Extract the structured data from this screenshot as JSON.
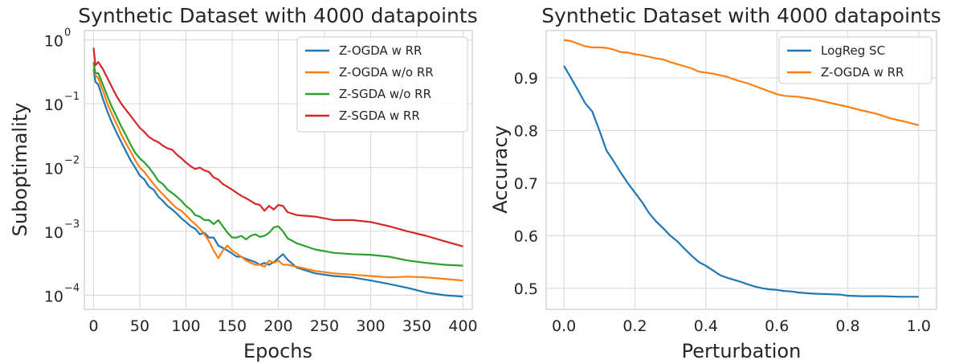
{
  "chart_data": [
    {
      "type": "line",
      "title": "Synthetic Dataset with 4000 datapoints",
      "xlabel": "Epochs",
      "ylabel": "Suboptimality",
      "yscale": "log",
      "xlim": [
        -10,
        410
      ],
      "ylim": [
        6e-05,
        1.4
      ],
      "xticks": [
        0,
        50,
        100,
        150,
        200,
        250,
        300,
        350,
        400
      ],
      "xtick_labels": [
        "0",
        "50",
        "100",
        "150",
        "200",
        "250",
        "300",
        "350",
        "400"
      ],
      "yticks": [
        0.0001,
        0.001,
        0.01,
        0.1,
        1
      ],
      "ytick_labels": [
        {
          "base": "10",
          "exp": "−4"
        },
        {
          "base": "10",
          "exp": "−3"
        },
        {
          "base": "10",
          "exp": "−2"
        },
        {
          "base": "10",
          "exp": "−1"
        },
        {
          "base": "10",
          "exp": "0"
        }
      ],
      "grid": true,
      "legend_position": "top-right",
      "series": [
        {
          "name": "Z-OGDA w RR",
          "color": "#1f77b4",
          "x": [
            0,
            2,
            5,
            10,
            15,
            20,
            25,
            30,
            35,
            40,
            45,
            50,
            55,
            60,
            65,
            70,
            75,
            80,
            85,
            90,
            95,
            100,
            105,
            110,
            115,
            120,
            125,
            130,
            135,
            140,
            145,
            150,
            155,
            160,
            165,
            170,
            175,
            180,
            185,
            190,
            195,
            200,
            205,
            210,
            220,
            240,
            260,
            280,
            300,
            320,
            340,
            360,
            380,
            400
          ],
          "y": [
            0.35,
            0.22,
            0.2,
            0.12,
            0.075,
            0.05,
            0.035,
            0.025,
            0.018,
            0.013,
            0.01,
            0.0075,
            0.0065,
            0.005,
            0.0045,
            0.0035,
            0.003,
            0.0025,
            0.0022,
            0.0019,
            0.0016,
            0.0014,
            0.0012,
            0.0011,
            0.0009,
            0.00095,
            0.0008,
            0.0008,
            0.0006,
            0.00055,
            0.0005,
            0.00045,
            0.0004,
            0.0004,
            0.00037,
            0.00035,
            0.00033,
            0.0003,
            0.00032,
            0.0003,
            0.00033,
            0.00038,
            0.00044,
            0.00036,
            0.00027,
            0.00022,
            0.0002,
            0.00019,
            0.00017,
            0.00015,
            0.00013,
            0.00011,
            0.0001,
            9.5e-05
          ]
        },
        {
          "name": "Z-OGDA w/o RR",
          "color": "#ff7f0e",
          "x": [
            0,
            2,
            5,
            10,
            15,
            20,
            25,
            30,
            35,
            40,
            45,
            50,
            55,
            60,
            65,
            70,
            75,
            80,
            85,
            90,
            95,
            100,
            105,
            110,
            115,
            120,
            125,
            130,
            135,
            140,
            145,
            150,
            155,
            160,
            165,
            170,
            175,
            180,
            185,
            190,
            195,
            200,
            205,
            210,
            220,
            240,
            260,
            280,
            300,
            320,
            340,
            360,
            380,
            400
          ],
          "y": [
            0.4,
            0.28,
            0.25,
            0.16,
            0.1,
            0.068,
            0.048,
            0.033,
            0.024,
            0.018,
            0.013,
            0.01,
            0.0085,
            0.0068,
            0.0055,
            0.0045,
            0.0038,
            0.0032,
            0.0027,
            0.0023,
            0.0021,
            0.0018,
            0.0015,
            0.0013,
            0.0011,
            0.0009,
            0.0007,
            0.0005,
            0.00038,
            0.0005,
            0.0006,
            0.0005,
            0.00045,
            0.0004,
            0.00035,
            0.00032,
            0.0003,
            0.0003,
            0.00028,
            0.00035,
            0.00032,
            0.00035,
            0.0003,
            0.0003,
            0.00028,
            0.00024,
            0.00022,
            0.00021,
            0.0002,
            0.00019,
            0.000195,
            0.00019,
            0.00018,
            0.00017
          ]
        },
        {
          "name": "Z-SGDA w/o RR",
          "color": "#2ca02c",
          "x": [
            0,
            2,
            5,
            10,
            15,
            20,
            25,
            30,
            35,
            40,
            45,
            50,
            55,
            60,
            65,
            70,
            75,
            80,
            85,
            90,
            95,
            100,
            105,
            110,
            115,
            120,
            125,
            130,
            135,
            140,
            145,
            150,
            155,
            160,
            165,
            170,
            175,
            180,
            185,
            190,
            195,
            200,
            205,
            210,
            220,
            240,
            260,
            280,
            300,
            320,
            340,
            360,
            380,
            400
          ],
          "y": [
            0.45,
            0.3,
            0.3,
            0.2,
            0.13,
            0.088,
            0.062,
            0.044,
            0.032,
            0.023,
            0.017,
            0.014,
            0.012,
            0.01,
            0.008,
            0.0062,
            0.0055,
            0.0045,
            0.004,
            0.0035,
            0.003,
            0.0025,
            0.0022,
            0.0018,
            0.0017,
            0.0015,
            0.0015,
            0.0013,
            0.0015,
            0.0012,
            0.00095,
            0.0008,
            0.0008,
            0.00085,
            0.00075,
            0.00085,
            0.0009,
            0.00082,
            0.00085,
            0.00095,
            0.00115,
            0.0012,
            0.001,
            0.00078,
            0.00065,
            0.00052,
            0.00046,
            0.00044,
            0.00043,
            0.0004,
            0.00035,
            0.00032,
            0.0003,
            0.00029
          ]
        },
        {
          "name": "Z-SGDA w RR",
          "color": "#d62728",
          "x": [
            0,
            2,
            5,
            10,
            15,
            20,
            25,
            30,
            35,
            40,
            45,
            50,
            55,
            60,
            65,
            70,
            75,
            80,
            85,
            90,
            95,
            100,
            105,
            110,
            115,
            120,
            125,
            130,
            135,
            140,
            145,
            150,
            155,
            160,
            165,
            170,
            175,
            180,
            185,
            190,
            195,
            200,
            205,
            210,
            220,
            240,
            260,
            280,
            300,
            320,
            340,
            360,
            380,
            400
          ],
          "y": [
            0.75,
            0.4,
            0.45,
            0.35,
            0.25,
            0.18,
            0.13,
            0.1,
            0.08,
            0.065,
            0.052,
            0.042,
            0.036,
            0.03,
            0.027,
            0.025,
            0.022,
            0.02,
            0.019,
            0.016,
            0.014,
            0.012,
            0.0105,
            0.0095,
            0.01,
            0.009,
            0.0085,
            0.007,
            0.0065,
            0.0055,
            0.005,
            0.0045,
            0.004,
            0.0036,
            0.0033,
            0.003,
            0.0027,
            0.0026,
            0.0021,
            0.0025,
            0.0022,
            0.0026,
            0.0025,
            0.002,
            0.0018,
            0.0017,
            0.0015,
            0.0015,
            0.0014,
            0.0012,
            0.001,
            0.00085,
            0.0007,
            0.00058
          ]
        }
      ]
    },
    {
      "type": "line",
      "title": "Synthetic Dataset with 4000 datapoints",
      "xlabel": "Perturbation",
      "ylabel": "Accuracy",
      "xlim": [
        -0.05,
        1.05
      ],
      "ylim": [
        0.46,
        0.99
      ],
      "xticks": [
        0.0,
        0.2,
        0.4,
        0.6,
        0.8,
        1.0
      ],
      "xtick_labels": [
        "0.0",
        "0.2",
        "0.4",
        "0.6",
        "0.8",
        "1.0"
      ],
      "yticks": [
        0.5,
        0.6,
        0.7,
        0.8,
        0.9
      ],
      "ytick_labels": [
        "0.5",
        "0.6",
        "0.7",
        "0.8",
        "0.9"
      ],
      "grid": true,
      "legend_position": "top-right",
      "series": [
        {
          "name": "LogReg SC",
          "color": "#1f77b4",
          "x": [
            0.0,
            0.02,
            0.04,
            0.06,
            0.08,
            0.1,
            0.12,
            0.14,
            0.16,
            0.18,
            0.2,
            0.22,
            0.24,
            0.26,
            0.28,
            0.3,
            0.32,
            0.34,
            0.36,
            0.38,
            0.4,
            0.42,
            0.44,
            0.46,
            0.48,
            0.5,
            0.52,
            0.54,
            0.56,
            0.58,
            0.6,
            0.62,
            0.64,
            0.66,
            0.7,
            0.74,
            0.78,
            0.8,
            0.84,
            0.9,
            0.95,
            1.0
          ],
          "y": [
            0.923,
            0.9,
            0.876,
            0.852,
            0.836,
            0.8,
            0.762,
            0.742,
            0.72,
            0.7,
            0.682,
            0.664,
            0.643,
            0.627,
            0.614,
            0.6,
            0.589,
            0.575,
            0.562,
            0.55,
            0.543,
            0.534,
            0.525,
            0.52,
            0.516,
            0.512,
            0.507,
            0.503,
            0.5,
            0.498,
            0.497,
            0.495,
            0.494,
            0.492,
            0.49,
            0.489,
            0.488,
            0.486,
            0.485,
            0.485,
            0.484,
            0.484
          ]
        },
        {
          "name": "Z-OGDA w RR",
          "color": "#ff7f0e",
          "x": [
            0.0,
            0.02,
            0.04,
            0.06,
            0.08,
            0.1,
            0.12,
            0.14,
            0.16,
            0.18,
            0.2,
            0.22,
            0.24,
            0.26,
            0.28,
            0.3,
            0.32,
            0.34,
            0.36,
            0.38,
            0.4,
            0.42,
            0.44,
            0.46,
            0.48,
            0.5,
            0.52,
            0.54,
            0.56,
            0.58,
            0.6,
            0.62,
            0.64,
            0.66,
            0.7,
            0.74,
            0.78,
            0.8,
            0.84,
            0.88,
            0.92,
            0.96,
            1.0
          ],
          "y": [
            0.972,
            0.97,
            0.965,
            0.96,
            0.958,
            0.958,
            0.957,
            0.954,
            0.949,
            0.948,
            0.945,
            0.943,
            0.94,
            0.937,
            0.935,
            0.93,
            0.926,
            0.922,
            0.918,
            0.912,
            0.91,
            0.908,
            0.905,
            0.902,
            0.897,
            0.893,
            0.889,
            0.884,
            0.879,
            0.874,
            0.869,
            0.866,
            0.865,
            0.864,
            0.86,
            0.854,
            0.848,
            0.845,
            0.838,
            0.832,
            0.823,
            0.817,
            0.81
          ]
        }
      ]
    }
  ]
}
